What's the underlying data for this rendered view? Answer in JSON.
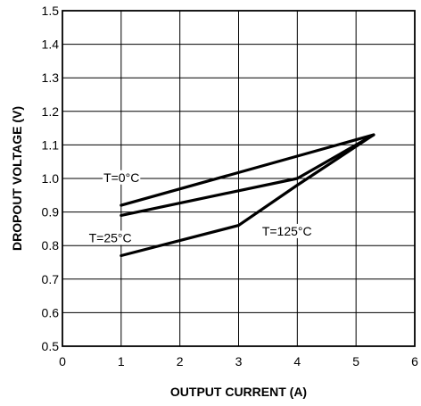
{
  "chart_data": {
    "type": "line",
    "title": "",
    "xlabel": "OUTPUT CURRENT (A)",
    "ylabel": "DROPOUT VOLTAGE (V)",
    "xlim": [
      0,
      6
    ],
    "ylim": [
      0.5,
      1.5
    ],
    "x_ticks": [
      "0",
      "1",
      "2",
      "3",
      "4",
      "5",
      "6"
    ],
    "y_ticks": [
      "0.5",
      "0.6",
      "0.7",
      "0.8",
      "0.9",
      "1.0",
      "1.1",
      "1.2",
      "1.3",
      "1.4",
      "1.5"
    ],
    "grid": true,
    "series": [
      {
        "name": "T=0°C",
        "x": [
          1,
          5.3
        ],
        "y": [
          0.92,
          1.13
        ]
      },
      {
        "name": "T=25°C",
        "x": [
          1,
          4,
          5.3
        ],
        "y": [
          0.89,
          1.0,
          1.13
        ]
      },
      {
        "name": "T=125°C",
        "x": [
          1,
          3,
          4,
          5.3
        ],
        "y": [
          0.77,
          0.86,
          0.98,
          1.13
        ]
      }
    ]
  }
}
